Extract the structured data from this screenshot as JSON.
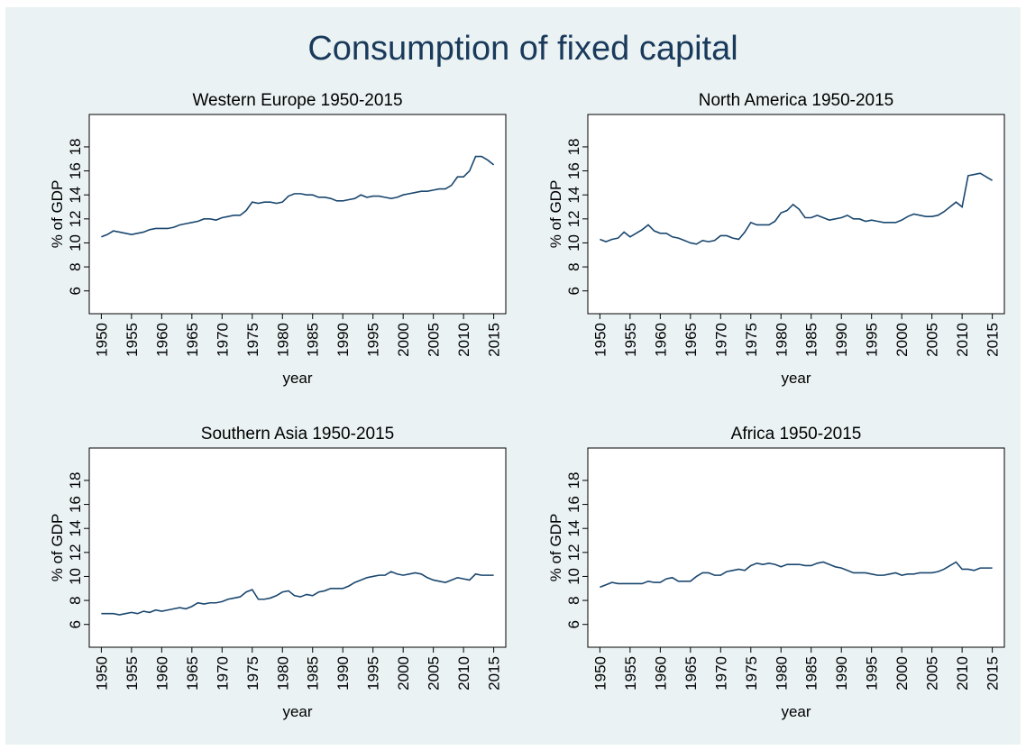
{
  "title": "Consumption of fixed capital",
  "chart_data": [
    {
      "type": "line",
      "title": "Western Europe 1950-2015",
      "xlabel": "year",
      "ylabel": "% of GDP",
      "color": "#1a476f",
      "x": [
        1950,
        1951,
        1952,
        1953,
        1954,
        1955,
        1956,
        1957,
        1958,
        1959,
        1960,
        1961,
        1962,
        1963,
        1964,
        1965,
        1966,
        1967,
        1968,
        1969,
        1970,
        1971,
        1972,
        1973,
        1974,
        1975,
        1976,
        1977,
        1978,
        1979,
        1980,
        1981,
        1982,
        1983,
        1984,
        1985,
        1986,
        1987,
        1988,
        1989,
        1990,
        1991,
        1992,
        1993,
        1994,
        1995,
        1996,
        1997,
        1998,
        1999,
        2000,
        2001,
        2002,
        2003,
        2004,
        2005,
        2006,
        2007,
        2008,
        2009,
        2010,
        2011,
        2012,
        2013,
        2014,
        2015
      ],
      "values": [
        10.5,
        10.7,
        11.0,
        10.9,
        10.8,
        10.7,
        10.8,
        10.9,
        11.1,
        11.2,
        11.2,
        11.2,
        11.3,
        11.5,
        11.6,
        11.7,
        11.8,
        12.0,
        12.0,
        11.9,
        12.1,
        12.2,
        12.3,
        12.3,
        12.7,
        13.4,
        13.3,
        13.4,
        13.4,
        13.3,
        13.4,
        13.9,
        14.1,
        14.1,
        14.0,
        14.0,
        13.8,
        13.8,
        13.7,
        13.5,
        13.5,
        13.6,
        13.7,
        14.0,
        13.8,
        13.9,
        13.9,
        13.8,
        13.7,
        13.8,
        14.0,
        14.1,
        14.2,
        14.3,
        14.3,
        14.4,
        14.5,
        14.5,
        14.8,
        15.5,
        15.5,
        16.0,
        17.2,
        17.2,
        16.9,
        16.5
      ],
      "xlim": [
        1948,
        2017
      ],
      "xticks": [
        1950,
        1955,
        1960,
        1965,
        1970,
        1975,
        1980,
        1985,
        1990,
        1995,
        2000,
        2005,
        2010,
        2015
      ],
      "ylim": [
        4.1,
        20.7
      ],
      "yticks": [
        6,
        8,
        10,
        12,
        14,
        16,
        18
      ]
    },
    {
      "type": "line",
      "title": "North America 1950-2015",
      "xlabel": "year",
      "ylabel": "% of GDP",
      "color": "#1a476f",
      "x": [
        1950,
        1951,
        1952,
        1953,
        1954,
        1955,
        1956,
        1957,
        1958,
        1959,
        1960,
        1961,
        1962,
        1963,
        1964,
        1965,
        1966,
        1967,
        1968,
        1969,
        1970,
        1971,
        1972,
        1973,
        1974,
        1975,
        1976,
        1977,
        1978,
        1979,
        1980,
        1981,
        1982,
        1983,
        1984,
        1985,
        1986,
        1987,
        1988,
        1989,
        1990,
        1991,
        1992,
        1993,
        1994,
        1995,
        1996,
        1997,
        1998,
        1999,
        2000,
        2001,
        2002,
        2003,
        2004,
        2005,
        2006,
        2007,
        2008,
        2009,
        2010,
        2011,
        2012,
        2013,
        2014,
        2015
      ],
      "values": [
        10.3,
        10.1,
        10.3,
        10.4,
        10.9,
        10.5,
        10.8,
        11.1,
        11.5,
        11.0,
        10.8,
        10.8,
        10.5,
        10.4,
        10.2,
        10.0,
        9.9,
        10.2,
        10.1,
        10.2,
        10.6,
        10.6,
        10.4,
        10.3,
        10.9,
        11.7,
        11.5,
        11.5,
        11.5,
        11.8,
        12.5,
        12.7,
        13.2,
        12.8,
        12.1,
        12.1,
        12.3,
        12.1,
        11.9,
        12.0,
        12.1,
        12.3,
        12.0,
        12.0,
        11.8,
        11.9,
        11.8,
        11.7,
        11.7,
        11.7,
        11.9,
        12.2,
        12.4,
        12.3,
        12.2,
        12.2,
        12.3,
        12.6,
        13.0,
        13.4,
        13.0,
        15.6,
        15.7,
        15.8,
        15.5,
        15.2
      ],
      "xlim": [
        1948,
        2017
      ],
      "xticks": [
        1950,
        1955,
        1960,
        1965,
        1970,
        1975,
        1980,
        1985,
        1990,
        1995,
        2000,
        2005,
        2010,
        2015
      ],
      "ylim": [
        4.1,
        20.7
      ],
      "yticks": [
        6,
        8,
        10,
        12,
        14,
        16,
        18
      ]
    },
    {
      "type": "line",
      "title": "Southern Asia 1950-2015",
      "xlabel": "year",
      "ylabel": "% of GDP",
      "color": "#1a476f",
      "x": [
        1950,
        1951,
        1952,
        1953,
        1954,
        1955,
        1956,
        1957,
        1958,
        1959,
        1960,
        1961,
        1962,
        1963,
        1964,
        1965,
        1966,
        1967,
        1968,
        1969,
        1970,
        1971,
        1972,
        1973,
        1974,
        1975,
        1976,
        1977,
        1978,
        1979,
        1980,
        1981,
        1982,
        1983,
        1984,
        1985,
        1986,
        1987,
        1988,
        1989,
        1990,
        1991,
        1992,
        1993,
        1994,
        1995,
        1996,
        1997,
        1998,
        1999,
        2000,
        2001,
        2002,
        2003,
        2004,
        2005,
        2006,
        2007,
        2008,
        2009,
        2010,
        2011,
        2012,
        2013,
        2014,
        2015
      ],
      "values": [
        6.9,
        6.9,
        6.9,
        6.8,
        6.9,
        7.0,
        6.9,
        7.1,
        7.0,
        7.2,
        7.1,
        7.2,
        7.3,
        7.4,
        7.3,
        7.5,
        7.8,
        7.7,
        7.8,
        7.8,
        7.9,
        8.1,
        8.2,
        8.3,
        8.7,
        8.9,
        8.1,
        8.1,
        8.2,
        8.4,
        8.7,
        8.8,
        8.4,
        8.3,
        8.5,
        8.4,
        8.7,
        8.8,
        9.0,
        9.0,
        9.0,
        9.2,
        9.5,
        9.7,
        9.9,
        10.0,
        10.1,
        10.1,
        10.4,
        10.2,
        10.1,
        10.2,
        10.3,
        10.2,
        9.9,
        9.7,
        9.6,
        9.5,
        9.7,
        9.9,
        9.8,
        9.7,
        10.2,
        10.1,
        10.1,
        10.1
      ],
      "xlim": [
        1948,
        2017
      ],
      "xticks": [
        1950,
        1955,
        1960,
        1965,
        1970,
        1975,
        1980,
        1985,
        1990,
        1995,
        2000,
        2005,
        2010,
        2015
      ],
      "ylim": [
        4.1,
        20.7
      ],
      "yticks": [
        6,
        8,
        10,
        12,
        14,
        16,
        18
      ]
    },
    {
      "type": "line",
      "title": "Africa 1950-2015",
      "xlabel": "year",
      "ylabel": "% of GDP",
      "color": "#1a476f",
      "x": [
        1950,
        1951,
        1952,
        1953,
        1954,
        1955,
        1956,
        1957,
        1958,
        1959,
        1960,
        1961,
        1962,
        1963,
        1964,
        1965,
        1966,
        1967,
        1968,
        1969,
        1970,
        1971,
        1972,
        1973,
        1974,
        1975,
        1976,
        1977,
        1978,
        1979,
        1980,
        1981,
        1982,
        1983,
        1984,
        1985,
        1986,
        1987,
        1988,
        1989,
        1990,
        1991,
        1992,
        1993,
        1994,
        1995,
        1996,
        1997,
        1998,
        1999,
        2000,
        2001,
        2002,
        2003,
        2004,
        2005,
        2006,
        2007,
        2008,
        2009,
        2010,
        2011,
        2012,
        2013,
        2014,
        2015
      ],
      "values": [
        9.1,
        9.3,
        9.5,
        9.4,
        9.4,
        9.4,
        9.4,
        9.4,
        9.6,
        9.5,
        9.5,
        9.8,
        9.9,
        9.6,
        9.6,
        9.6,
        10.0,
        10.3,
        10.3,
        10.1,
        10.1,
        10.4,
        10.5,
        10.6,
        10.5,
        10.9,
        11.1,
        11.0,
        11.1,
        11.0,
        10.8,
        11.0,
        11.0,
        11.0,
        10.9,
        10.9,
        11.1,
        11.2,
        11.0,
        10.8,
        10.7,
        10.5,
        10.3,
        10.3,
        10.3,
        10.2,
        10.1,
        10.1,
        10.2,
        10.3,
        10.1,
        10.2,
        10.2,
        10.3,
        10.3,
        10.3,
        10.4,
        10.6,
        10.9,
        11.2,
        10.6,
        10.6,
        10.5,
        10.7,
        10.7,
        10.7
      ],
      "xlim": [
        1948,
        2017
      ],
      "xticks": [
        1950,
        1955,
        1960,
        1965,
        1970,
        1975,
        1980,
        1985,
        1990,
        1995,
        2000,
        2005,
        2010,
        2015
      ],
      "ylim": [
        4.1,
        20.7
      ],
      "yticks": [
        6,
        8,
        10,
        12,
        14,
        16,
        18
      ]
    }
  ]
}
